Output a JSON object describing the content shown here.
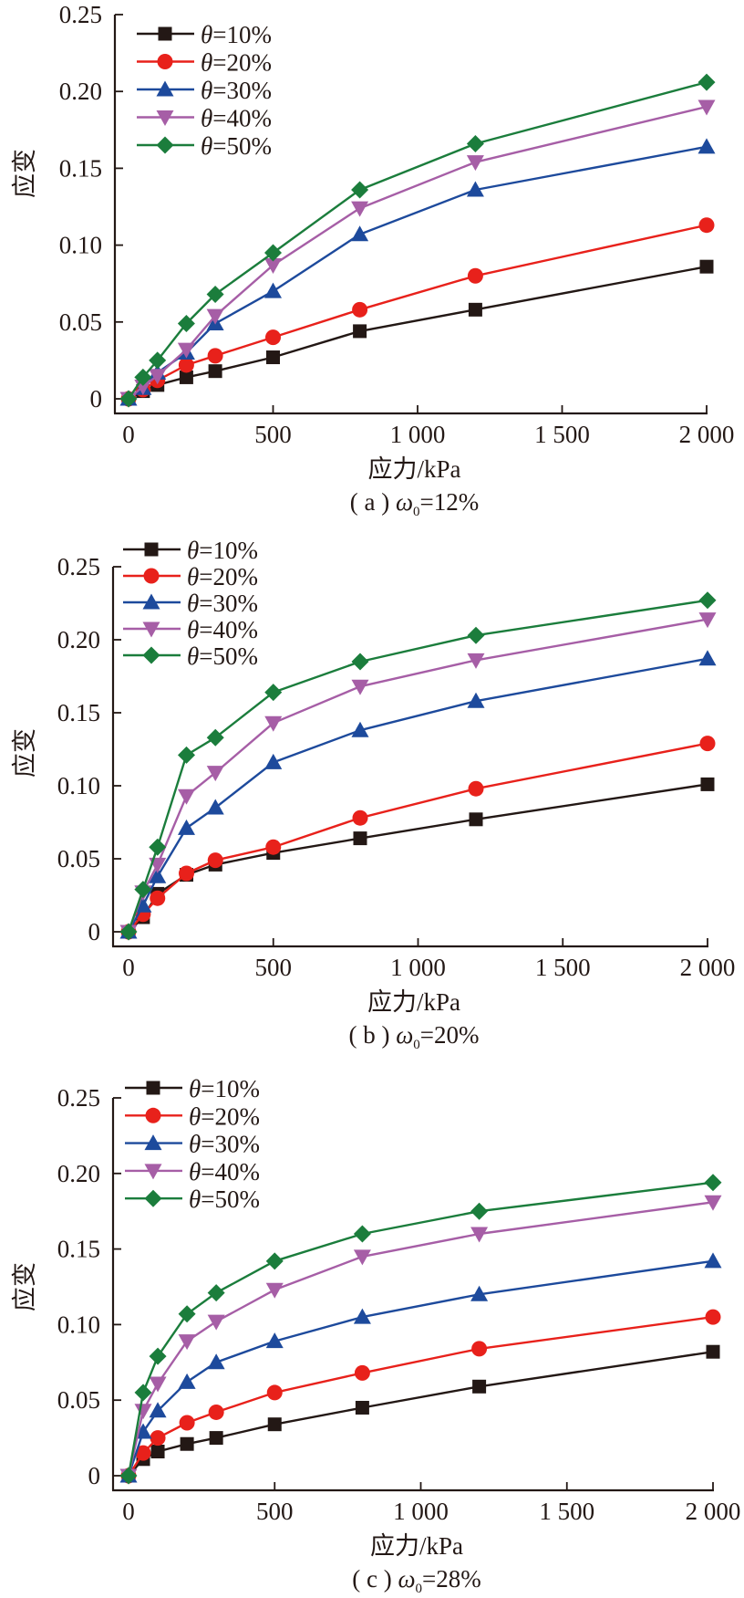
{
  "chart_data": [
    {
      "type": "line",
      "id": "a",
      "title": "",
      "caption": {
        "prefix": "( a ) ",
        "symbol": "ω",
        "subscript": "0",
        "suffix": "=12%"
      },
      "xlabel": "应力/kPa",
      "ylabel": "应变",
      "xlim": [
        0,
        2000
      ],
      "ylim": [
        0,
        0.25
      ],
      "xticks": [
        0,
        500,
        1000,
        1500,
        2000
      ],
      "xtick_labels": [
        "0",
        "500",
        "1 000",
        "1 500",
        "2 000"
      ],
      "yticks": [
        0,
        0.05,
        0.1,
        0.15,
        0.2,
        0.25
      ],
      "ytick_labels": [
        "0",
        "0.05",
        "0.10",
        "0.15",
        "0.20",
        "0.25"
      ],
      "grid": false,
      "legend_position": "top-left",
      "x": [
        0,
        50,
        100,
        200,
        300,
        500,
        800,
        1200,
        2000
      ],
      "series": [
        {
          "name": "θ=10%",
          "theta": "10%",
          "marker": "square",
          "color": "#231815",
          "values": [
            0,
            0.005,
            0.009,
            0.014,
            0.018,
            0.027,
            0.044,
            0.058,
            0.086
          ]
        },
        {
          "name": "θ=20%",
          "theta": "20%",
          "marker": "circle",
          "color": "#e8211b",
          "values": [
            0,
            0.006,
            0.012,
            0.022,
            0.028,
            0.04,
            0.058,
            0.08,
            0.113
          ]
        },
        {
          "name": "θ=30%",
          "theta": "30%",
          "marker": "triangle-up",
          "color": "#1d4a9c",
          "values": [
            0,
            0.007,
            0.017,
            0.03,
            0.049,
            0.07,
            0.107,
            0.136,
            0.164
          ]
        },
        {
          "name": "θ=40%",
          "theta": "40%",
          "marker": "triangle-down",
          "color": "#a65ea6",
          "values": [
            0,
            0.008,
            0.015,
            0.032,
            0.054,
            0.087,
            0.124,
            0.154,
            0.19
          ]
        },
        {
          "name": "θ=50%",
          "theta": "50%",
          "marker": "diamond",
          "color": "#1b7d3c",
          "values": [
            0,
            0.014,
            0.025,
            0.049,
            0.068,
            0.095,
            0.136,
            0.166,
            0.206
          ]
        }
      ]
    },
    {
      "type": "line",
      "id": "b",
      "title": "",
      "caption": {
        "prefix": "( b ) ",
        "symbol": "ω",
        "subscript": "0",
        "suffix": "=20%"
      },
      "xlabel": "应力/kPa",
      "ylabel": "应变",
      "xlim": [
        0,
        2000
      ],
      "ylim": [
        0,
        0.25
      ],
      "xticks": [
        0,
        500,
        1000,
        1500,
        2000
      ],
      "xtick_labels": [
        "0",
        "500",
        "1 000",
        "1 500",
        "2 000"
      ],
      "yticks": [
        0,
        0.05,
        0.1,
        0.15,
        0.2,
        0.25
      ],
      "ytick_labels": [
        "0",
        "0.05",
        "0.10",
        "0.15",
        "0.20",
        "0.25"
      ],
      "grid": false,
      "legend_position": "top-left",
      "x": [
        0,
        50,
        100,
        200,
        300,
        500,
        800,
        1200,
        2000
      ],
      "series": [
        {
          "name": "θ=10%",
          "theta": "10%",
          "marker": "square",
          "color": "#231815",
          "values": [
            0,
            0.01,
            0.026,
            0.039,
            0.046,
            0.054,
            0.064,
            0.077,
            0.101
          ]
        },
        {
          "name": "θ=20%",
          "theta": "20%",
          "marker": "circle",
          "color": "#e8211b",
          "values": [
            0,
            0.012,
            0.023,
            0.04,
            0.049,
            0.058,
            0.078,
            0.098,
            0.129
          ]
        },
        {
          "name": "θ=30%",
          "theta": "30%",
          "marker": "triangle-up",
          "color": "#1d4a9c",
          "values": [
            0,
            0.018,
            0.038,
            0.071,
            0.085,
            0.116,
            0.138,
            0.158,
            0.187
          ]
        },
        {
          "name": "θ=40%",
          "theta": "40%",
          "marker": "triangle-down",
          "color": "#a65ea6",
          "values": [
            0,
            0.027,
            0.046,
            0.093,
            0.109,
            0.143,
            0.168,
            0.186,
            0.214
          ]
        },
        {
          "name": "θ=50%",
          "theta": "50%",
          "marker": "diamond",
          "color": "#1b7d3c",
          "values": [
            0,
            0.029,
            0.058,
            0.121,
            0.133,
            0.164,
            0.185,
            0.203,
            0.227
          ]
        }
      ]
    },
    {
      "type": "line",
      "id": "c",
      "title": "",
      "caption": {
        "prefix": "( c ) ",
        "symbol": "ω",
        "subscript": "0",
        "suffix": "=28%"
      },
      "xlabel": "应力/kPa",
      "ylabel": "应变",
      "xlim": [
        0,
        2000
      ],
      "ylim": [
        0,
        0.25
      ],
      "xticks": [
        0,
        500,
        1000,
        1500,
        2000
      ],
      "xtick_labels": [
        "0",
        "500",
        "1 000",
        "1 500",
        "2 000"
      ],
      "yticks": [
        0,
        0.05,
        0.1,
        0.15,
        0.2,
        0.25
      ],
      "ytick_labels": [
        "0",
        "0.05",
        "0.10",
        "0.15",
        "0.20",
        "0.25"
      ],
      "grid": false,
      "legend_position": "top-left",
      "x": [
        0,
        50,
        100,
        200,
        300,
        500,
        800,
        1200,
        2000
      ],
      "series": [
        {
          "name": "θ=10%",
          "theta": "10%",
          "marker": "square",
          "color": "#231815",
          "values": [
            0,
            0.011,
            0.016,
            0.021,
            0.025,
            0.034,
            0.045,
            0.059,
            0.082
          ]
        },
        {
          "name": "θ=20%",
          "theta": "20%",
          "marker": "circle",
          "color": "#e8211b",
          "values": [
            0,
            0.015,
            0.025,
            0.035,
            0.042,
            0.055,
            0.068,
            0.084,
            0.105
          ]
        },
        {
          "name": "θ=30%",
          "theta": "30%",
          "marker": "triangle-up",
          "color": "#1d4a9c",
          "values": [
            0,
            0.029,
            0.043,
            0.062,
            0.075,
            0.089,
            0.105,
            0.12,
            0.142
          ]
        },
        {
          "name": "θ=40%",
          "theta": "40%",
          "marker": "triangle-down",
          "color": "#a65ea6",
          "values": [
            0,
            0.043,
            0.061,
            0.089,
            0.102,
            0.123,
            0.145,
            0.16,
            0.181
          ]
        },
        {
          "name": "θ=50%",
          "theta": "50%",
          "marker": "diamond",
          "color": "#1b7d3c",
          "values": [
            0,
            0.055,
            0.079,
            0.107,
            0.121,
            0.142,
            0.16,
            0.175,
            0.194
          ]
        }
      ]
    }
  ]
}
